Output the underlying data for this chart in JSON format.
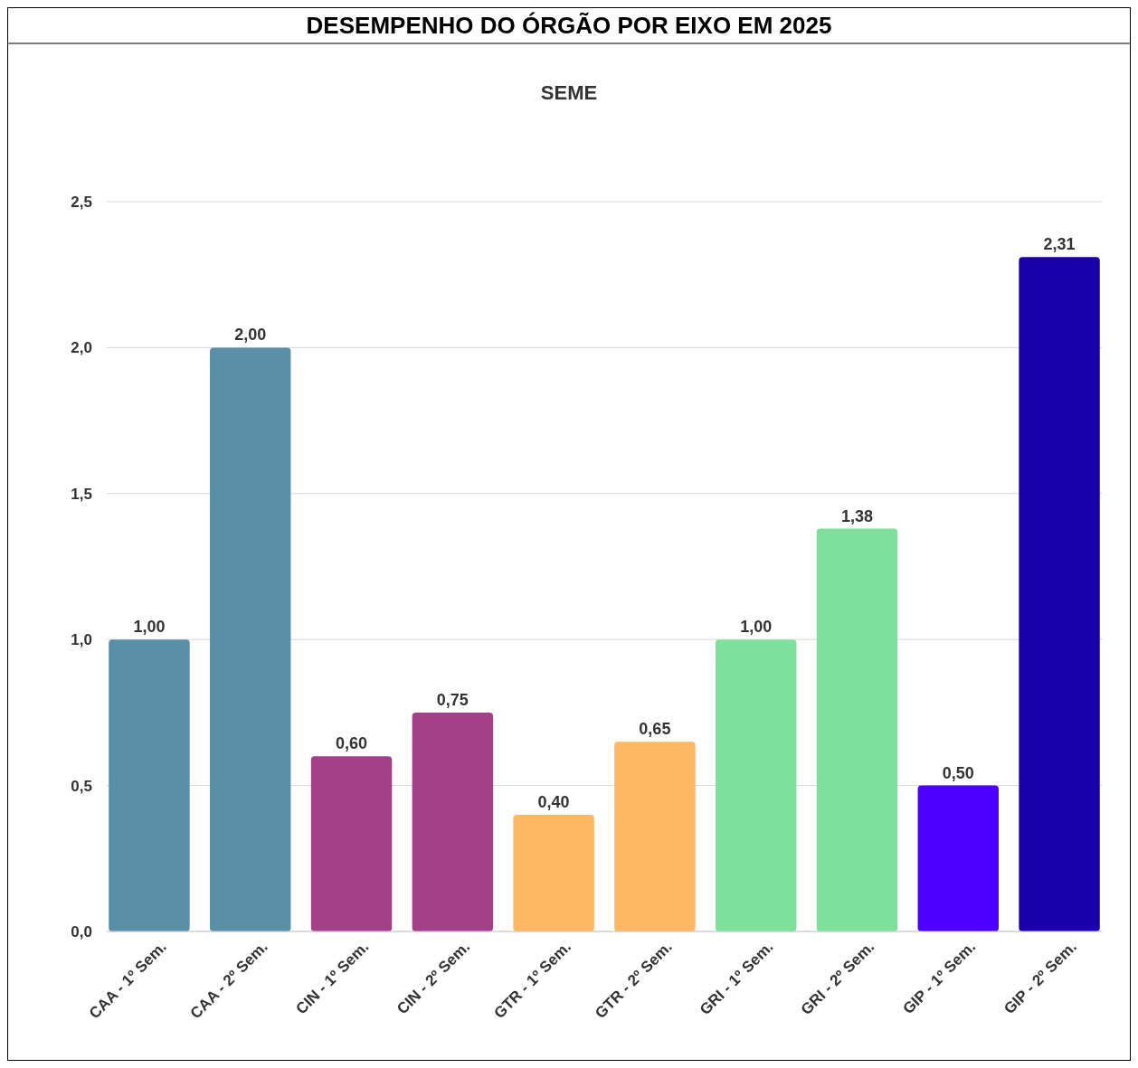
{
  "chart_data": {
    "type": "bar",
    "title": "DESEMPENHO DO ÓRGÃO POR EIXO EM 2025",
    "subtitle": "SEME",
    "categories": [
      "CAA - 1º Sem.",
      "CAA - 2º Sem.",
      "CIN - 1º Sem.",
      "CIN - 2º Sem.",
      "GTR - 1º Sem.",
      "GTR - 2º Sem.",
      "GRI - 1º Sem.",
      "GRI - 2º Sem.",
      "GIP - 1º Sem.",
      "GIP - 2º Sem."
    ],
    "values": [
      1.0,
      2.0,
      0.6,
      0.75,
      0.4,
      0.65,
      1.0,
      1.38,
      0.5,
      2.31
    ],
    "colors": [
      "#5b8fa8",
      "#5b8fa8",
      "#a34188",
      "#a34188",
      "#fdb662",
      "#fdb662",
      "#7ee09b",
      "#7ee09b",
      "#4b00ff",
      "#1a00a8"
    ],
    "value_labels": [
      "1,00",
      "2,00",
      "0,60",
      "0,75",
      "0,40",
      "0,65",
      "1,00",
      "1,38",
      "0,50",
      "2,31"
    ],
    "ylim": [
      0,
      2.5
    ],
    "yticks": [
      {
        "value": 0,
        "label": "0,0"
      },
      {
        "value": 0.5,
        "label": "0,5"
      },
      {
        "value": 1,
        "label": "1,0"
      },
      {
        "value": 1.5,
        "label": "1,5"
      },
      {
        "value": 2,
        "label": "2,0"
      },
      {
        "value": 2.5,
        "label": "2,5"
      }
    ],
    "grid": "y"
  }
}
